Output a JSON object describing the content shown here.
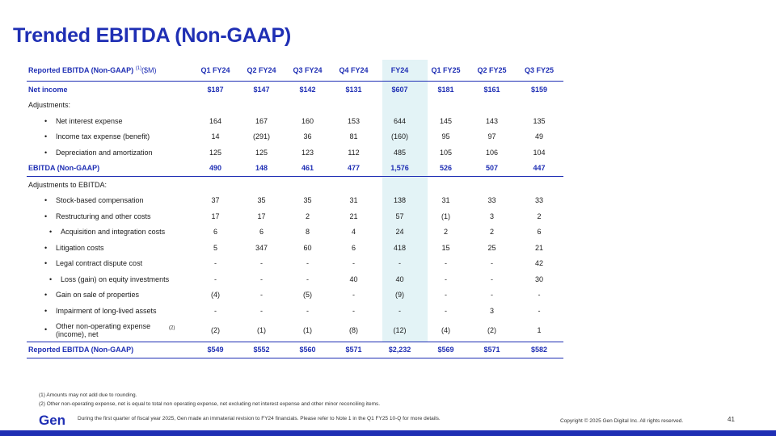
{
  "title": "Trended EBITDA (Non-GAAP)",
  "table": {
    "header_label": "Reported EBITDA (Non-GAAP)",
    "header_sup": "(1)",
    "header_unit": "($M)",
    "columns": [
      "Q1 FY24",
      "Q2 FY24",
      "Q3 FY24",
      "Q4 FY24",
      "FY24",
      "Q1 FY25",
      "Q2 FY25",
      "Q3 FY25"
    ],
    "rows": [
      {
        "label": "Net income",
        "values": [
          "$187",
          "$147",
          "$142",
          "$131",
          "$607",
          "$181",
          "$161",
          "$159"
        ]
      },
      {
        "label": "Adjustments:",
        "values": [
          "",
          "",
          "",
          "",
          "",
          "",
          "",
          ""
        ]
      },
      {
        "label": "Net interest expense",
        "values": [
          "164",
          "167",
          "160",
          "153",
          "644",
          "145",
          "143",
          "135"
        ]
      },
      {
        "label": "Income tax expense (benefit)",
        "values": [
          "14",
          "(291)",
          "36",
          "81",
          "(160)",
          "95",
          "97",
          "49"
        ]
      },
      {
        "label": "Depreciation and amortization",
        "values": [
          "125",
          "125",
          "123",
          "112",
          "485",
          "105",
          "106",
          "104"
        ]
      },
      {
        "label": "EBITDA (Non-GAAP)",
        "values": [
          "490",
          "148",
          "461",
          "477",
          "1,576",
          "526",
          "507",
          "447"
        ]
      },
      {
        "label": "Adjustments to EBITDA:",
        "values": [
          "",
          "",
          "",
          "",
          "",
          "",
          "",
          ""
        ]
      },
      {
        "label": "Stock-based compensation",
        "values": [
          "37",
          "35",
          "35",
          "31",
          "138",
          "31",
          "33",
          "33"
        ]
      },
      {
        "label": "Restructuring and other costs",
        "values": [
          "17",
          "17",
          "2",
          "21",
          "57",
          "(1)",
          "3",
          "2"
        ]
      },
      {
        "label": "Acquisition and integration costs",
        "values": [
          "6",
          "6",
          "8",
          "4",
          "24",
          "2",
          "2",
          "6"
        ]
      },
      {
        "label": "Litigation costs",
        "values": [
          "5",
          "347",
          "60",
          "6",
          "418",
          "15",
          "25",
          "21"
        ]
      },
      {
        "label": "Legal contract dispute cost",
        "values": [
          "-",
          "-",
          "-",
          "-",
          "-",
          "-",
          "-",
          "42"
        ]
      },
      {
        "label": "Loss (gain) on equity investments",
        "values": [
          "-",
          "-",
          "-",
          "40",
          "40",
          "-",
          "-",
          "30"
        ]
      },
      {
        "label": "Gain on sale of properties",
        "values": [
          "(4)",
          "-",
          "(5)",
          "-",
          "(9)",
          "-",
          "-",
          "-"
        ]
      },
      {
        "label": "Impairment of long-lived assets",
        "values": [
          "-",
          "-",
          "-",
          "-",
          "-",
          "-",
          "3",
          "-"
        ]
      },
      {
        "label": "Other non-operating expense (income), net",
        "label_sup": "(2)",
        "values": [
          "(2)",
          "(1)",
          "(1)",
          "(8)",
          "(12)",
          "(4)",
          "(2)",
          "1"
        ]
      },
      {
        "label": "Reported EBITDA (Non-GAAP)",
        "values": [
          "$549",
          "$552",
          "$560",
          "$571",
          "$2,232",
          "$569",
          "$571",
          "$582"
        ]
      }
    ]
  },
  "bullet": "•",
  "notes": [
    "(1) Amounts may not add due to rounding.",
    "(2) Other non-operating expense, net is equal to total non operating expense, net excluding net interest expense and other minor reconciling items."
  ],
  "footer": {
    "logo": "Gen",
    "note": "During the first quarter of fiscal year 2025, Gen made an immaterial revision to FY24 financials. Please refer to Note 1 in the Q1 FY25 10-Q for more details.",
    "copyright": "Copyright © 2025 Gen Digital Inc. All rights reserved.",
    "page": "41"
  },
  "colors": {
    "accent": "#1f2fb4",
    "fy_highlight": "#e3f3f6"
  }
}
